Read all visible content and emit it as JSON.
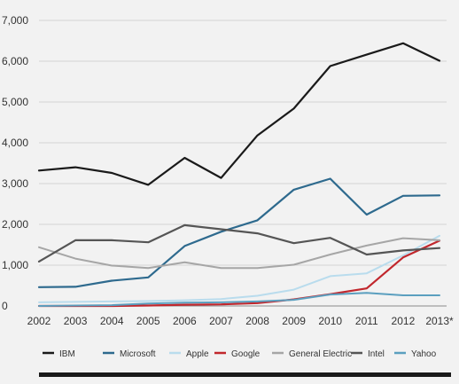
{
  "chart_data": {
    "type": "line",
    "title": "",
    "xlabel": "",
    "ylabel": "",
    "x": [
      "2002",
      "2003",
      "2004",
      "2005",
      "2006",
      "2007",
      "2008",
      "2009",
      "2010",
      "2011",
      "2012",
      "2013*"
    ],
    "y_ticks": [
      "0",
      "1,000",
      "2,000",
      "3,000",
      "4,000",
      "5,000",
      "6,000",
      "7,000"
    ],
    "ylim": [
      0,
      7000
    ],
    "grid": "horizontal",
    "legend_position": "bottom",
    "series": [
      {
        "name": "IBM",
        "color": "#1a1a1a",
        "values": [
          3320,
          3400,
          3260,
          2970,
          3630,
          3140,
          4180,
          4840,
          5880,
          6160,
          6440,
          6010
        ]
      },
      {
        "name": "Microsoft",
        "color": "#2e6a8e",
        "values": [
          460,
          470,
          620,
          700,
          1470,
          1820,
          2100,
          2850,
          3120,
          2240,
          2700,
          2710
        ]
      },
      {
        "name": "Apple",
        "color": "#b9dced",
        "values": [
          90,
          100,
          110,
          120,
          140,
          170,
          250,
          400,
          730,
          800,
          1240,
          1720
        ]
      },
      {
        "name": "Google",
        "color": "#c1272d",
        "values": [
          0,
          0,
          0,
          10,
          30,
          40,
          70,
          160,
          290,
          430,
          1190,
          1600
        ]
      },
      {
        "name": "General Electric",
        "color": "#a6a6a6",
        "values": [
          1440,
          1160,
          990,
          930,
          1070,
          930,
          930,
          1010,
          1260,
          1480,
          1660,
          1610
        ]
      },
      {
        "name": "Intel",
        "color": "#555555",
        "values": [
          1090,
          1610,
          1610,
          1560,
          1980,
          1880,
          1780,
          1540,
          1670,
          1260,
          1360,
          1420
        ]
      },
      {
        "name": "Yahoo",
        "color": "#5b9fbf",
        "values": [
          0,
          10,
          20,
          60,
          80,
          90,
          110,
          150,
          280,
          320,
          260,
          260
        ]
      }
    ]
  }
}
